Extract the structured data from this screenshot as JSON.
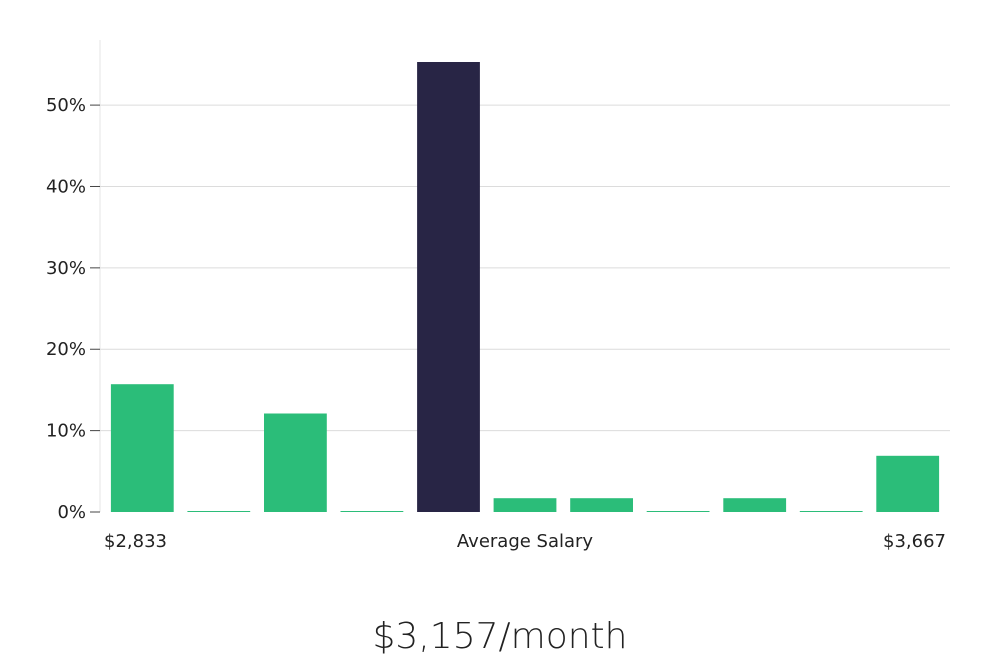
{
  "chart_data": {
    "type": "bar",
    "values": [
      15.7,
      0.1,
      12.1,
      0.1,
      55.3,
      1.7,
      1.7,
      0.1,
      1.7,
      0.1,
      6.9
    ],
    "highlight_index": 4,
    "ylim": [
      0,
      58
    ],
    "y_ticks": [
      0,
      10,
      20,
      30,
      40,
      50
    ],
    "y_tick_suffix": "%",
    "grid": true,
    "x_min_label": "$2,833",
    "x_center_label": "Average Salary",
    "x_max_label": "$3,667",
    "caption": "$3,157/month",
    "colors": {
      "bar": "#2bbd79",
      "highlight": "#282545",
      "grid": "#dcdcdc",
      "axis": "#e6e6e6"
    }
  }
}
